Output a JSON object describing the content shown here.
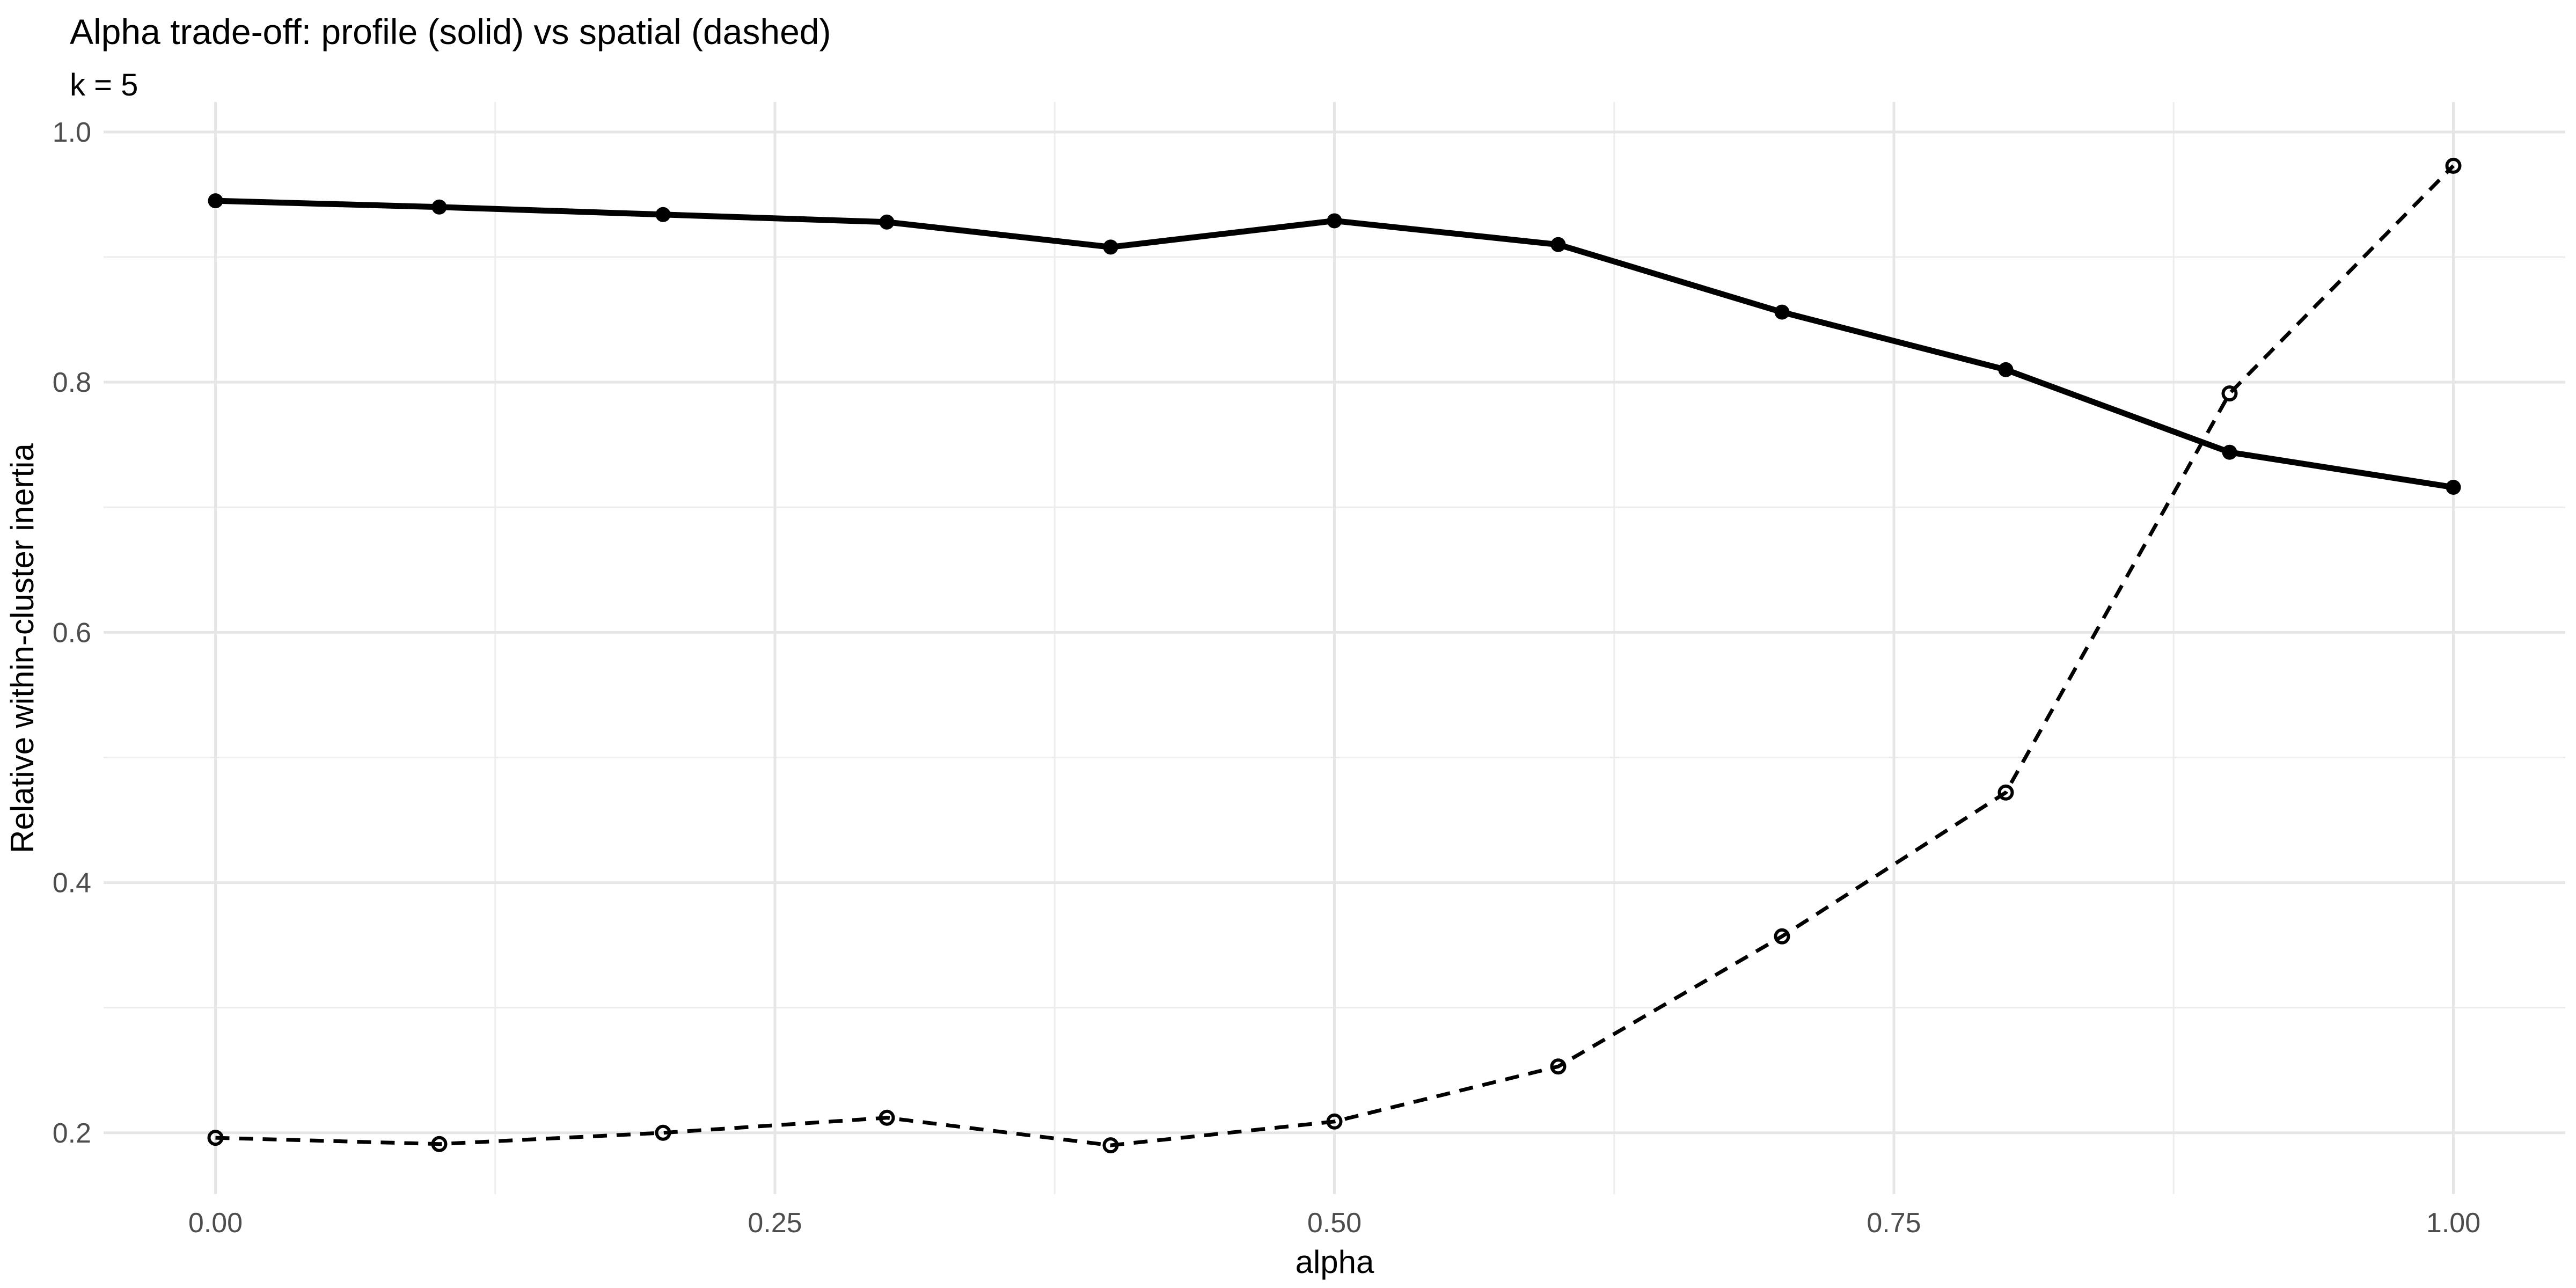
{
  "title": "Alpha trade-off: profile (solid) vs spatial (dashed)",
  "subtitle": "k = 5",
  "chart_data": {
    "type": "line",
    "x": [
      0.0,
      0.1,
      0.2,
      0.3,
      0.4,
      0.5,
      0.6,
      0.7,
      0.8,
      0.9,
      1.0
    ],
    "series": [
      {
        "name": "profile",
        "line_style": "solid",
        "marker": "filled-circle",
        "color": "#000000",
        "values": [
          0.945,
          0.94,
          0.934,
          0.928,
          0.908,
          0.929,
          0.91,
          0.856,
          0.81,
          0.744,
          0.716
        ]
      },
      {
        "name": "spatial",
        "line_style": "dashed",
        "marker": "open-circle",
        "color": "#000000",
        "values": [
          0.196,
          0.191,
          0.2,
          0.212,
          0.19,
          0.209,
          0.253,
          0.357,
          0.472,
          0.791,
          0.973
        ]
      }
    ],
    "xlabel": "alpha",
    "ylabel": "Relative within-cluster inertia",
    "xlim": [
      -0.05,
      1.05
    ],
    "ylim": [
      0.151,
      1.024
    ],
    "x_major_ticks": [
      0.0,
      0.25,
      0.5,
      0.75,
      1.0
    ],
    "x_tick_labels": [
      "0.00",
      "0.25",
      "0.50",
      "0.75",
      "1.00"
    ],
    "x_minor_ticks": [
      0.125,
      0.375,
      0.625,
      0.875
    ],
    "y_major_ticks": [
      0.2,
      0.4,
      0.6,
      0.8,
      1.0
    ],
    "y_tick_labels": [
      "0.2",
      "0.4",
      "0.6",
      "0.8",
      "1.0"
    ],
    "y_minor_ticks": [
      0.3,
      0.5,
      0.7,
      0.9
    ],
    "grid": true,
    "legend": "none",
    "colors": {
      "grid_major": "#E6E6E6",
      "grid_minor": "#EDEDED",
      "tick_label": "#4D4D4D",
      "text": "#000000",
      "background": "#FFFFFF"
    }
  }
}
